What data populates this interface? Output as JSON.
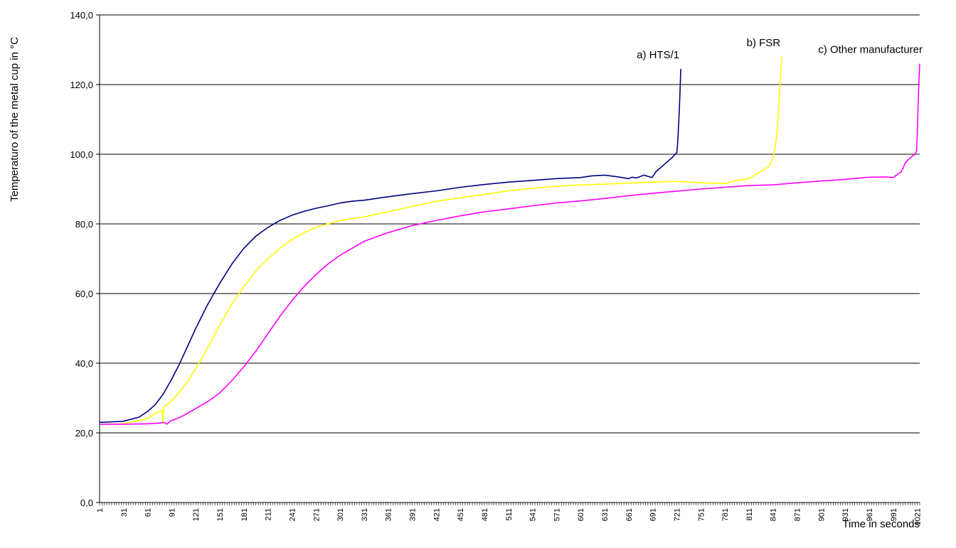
{
  "chart_data": {
    "type": "line",
    "title": "",
    "xlabel": "Time in seconds",
    "ylabel": "Temperaturo of the metal cup in °C",
    "ylim": [
      0,
      140
    ],
    "xlim": [
      1,
      1024
    ],
    "grid": true,
    "y_ticks": [
      "0,0",
      "20,0",
      "40,0",
      "60,0",
      "80,0",
      "100,0",
      "120,0",
      "140,0"
    ],
    "y_tick_values": [
      0,
      20,
      40,
      60,
      80,
      100,
      120,
      140
    ],
    "x_ticks": [
      "1",
      "31",
      "61",
      "91",
      "121",
      "151",
      "181",
      "211",
      "241",
      "271",
      "301",
      "331",
      "361",
      "391",
      "421",
      "451",
      "481",
      "511",
      "541",
      "571",
      "601",
      "631",
      "661",
      "691",
      "721",
      "751",
      "781",
      "811",
      "841",
      "871",
      "901",
      "931",
      "961",
      "991",
      "1021"
    ],
    "x_tick_values": [
      1,
      31,
      61,
      91,
      121,
      151,
      181,
      211,
      241,
      271,
      301,
      331,
      361,
      391,
      421,
      451,
      481,
      511,
      541,
      571,
      601,
      631,
      661,
      691,
      721,
      751,
      781,
      811,
      841,
      871,
      901,
      931,
      961,
      991,
      1021
    ],
    "series": [
      {
        "name": "a) HTS/1",
        "color": "#000080",
        "x": [
          1,
          30,
          50,
          60,
          70,
          80,
          90,
          100,
          110,
          121,
          135,
          151,
          166,
          181,
          196,
          211,
          226,
          241,
          256,
          271,
          286,
          301,
          316,
          331,
          361,
          391,
          421,
          451,
          481,
          511,
          541,
          571,
          601,
          615,
          631,
          645,
          661,
          665,
          671,
          680,
          690,
          695,
          700,
          710,
          715,
          721,
          722,
          723,
          724,
          725,
          726
        ],
        "y": [
          23,
          23.3,
          24.5,
          26,
          28,
          31,
          35,
          39.5,
          44.5,
          50,
          56.5,
          63,
          68.5,
          73,
          76.5,
          79,
          81,
          82.5,
          83.6,
          84.5,
          85.2,
          86,
          86.5,
          86.8,
          87.8,
          88.7,
          89.5,
          90.5,
          91.3,
          92,
          92.5,
          93,
          93.3,
          93.8,
          94,
          93.6,
          93,
          93.4,
          93.2,
          94,
          93.3,
          95,
          96,
          98,
          99,
          100.5,
          103,
          107,
          112,
          118,
          124.5
        ]
      },
      {
        "name": "b) FSR",
        "color": "#ffff00",
        "x": [
          1,
          30,
          60,
          70,
          79,
          80,
          81,
          90,
          100,
          110,
          121,
          135,
          151,
          166,
          181,
          196,
          211,
          226,
          241,
          256,
          271,
          286,
          301,
          316,
          331,
          361,
          391,
          421,
          451,
          481,
          511,
          541,
          571,
          601,
          631,
          661,
          691,
          721,
          751,
          781,
          795,
          811,
          825,
          836,
          840,
          843,
          846,
          848,
          850,
          852
        ],
        "y": [
          22.5,
          22.6,
          24,
          25.5,
          26.5,
          23,
          27.5,
          29,
          31.5,
          34.5,
          38.5,
          44,
          51,
          57,
          62,
          66.5,
          70,
          73,
          75.5,
          77.5,
          79,
          80,
          81,
          81.5,
          82,
          83.5,
          85,
          86.5,
          87.5,
          88.5,
          89.5,
          90.2,
          90.8,
          91.2,
          91.4,
          91.7,
          92,
          92.2,
          91.8,
          91.6,
          92.5,
          93,
          95,
          96.5,
          98.5,
          101,
          106,
          113,
          121,
          128
        ]
      },
      {
        "name": "c) Other manufacturer",
        "color": "#ff00ff",
        "x": [
          1,
          30,
          60,
          75,
          82,
          85,
          90,
          100,
          110,
          121,
          136,
          151,
          166,
          181,
          196,
          211,
          226,
          241,
          256,
          271,
          286,
          301,
          316,
          331,
          361,
          391,
          421,
          451,
          481,
          511,
          541,
          571,
          601,
          631,
          661,
          691,
          721,
          751,
          781,
          811,
          841,
          871,
          901,
          931,
          961,
          981,
          991,
          995,
          1001,
          1006,
          1010,
          1015,
          1018,
          1020,
          1021,
          1022,
          1023,
          1024
        ],
        "y": [
          22.5,
          22.5,
          22.6,
          22.8,
          23,
          22.5,
          23.5,
          24.3,
          25.5,
          27,
          29,
          31.5,
          35,
          39,
          43.5,
          48.5,
          53.5,
          58,
          62,
          65.5,
          68.5,
          71,
          73,
          75,
          77.5,
          79.5,
          81,
          82.3,
          83.5,
          84.3,
          85.2,
          86,
          86.6,
          87.3,
          88.1,
          88.8,
          89.4,
          90,
          90.5,
          91,
          91.2,
          91.8,
          92.3,
          92.8,
          93.4,
          93.5,
          93.3,
          94,
          95,
          97.5,
          98.5,
          99.5,
          100,
          101,
          106,
          114,
          121,
          126
        ]
      }
    ]
  }
}
